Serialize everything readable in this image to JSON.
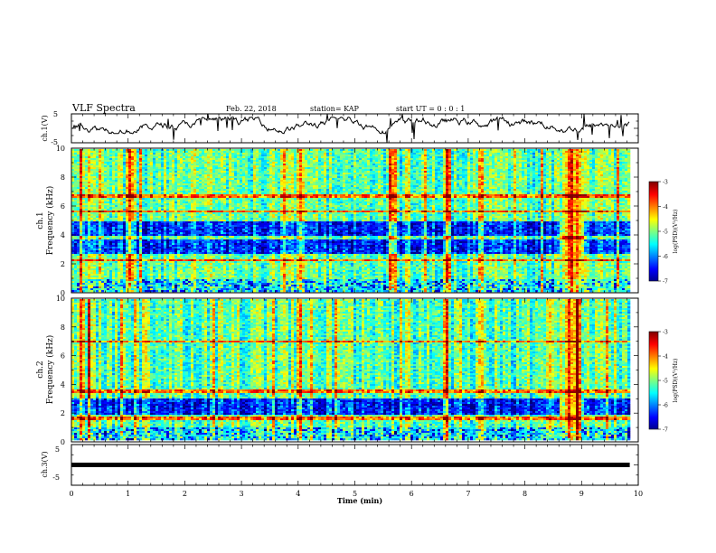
{
  "header": {
    "title": "VLF Spectra",
    "date": "Feb. 22, 2018",
    "station": "station= KAP",
    "start": "start  UT =   0 : 0  : 1"
  },
  "chart_data": [
    {
      "type": "line",
      "panel": "ch1-waveform",
      "ylabel": "ch.1(V)",
      "ylim": [
        -5,
        5
      ],
      "yticks": [
        "5",
        "-5"
      ],
      "xlim": [
        0,
        10
      ],
      "note_trace": "noisy signal between about -2 V and +4 V"
    },
    {
      "type": "heatmap",
      "panel": "ch1-spectrogram",
      "ylabel": "ch.1\nFrequency (kHz)",
      "ylim": [
        0,
        10
      ],
      "yticks": [
        "10",
        "8",
        "6",
        "4",
        "2",
        "0"
      ],
      "xlim": [
        0,
        10
      ],
      "colorbar": {
        "label": "log(PSD)(V²/Hz)",
        "range": [
          -7,
          -3
        ],
        "ticks": [
          "-3",
          "-4",
          "-5",
          "-6",
          "-7"
        ]
      },
      "strong_lines_khz": [
        2.2,
        3.8,
        5.6,
        6.7
      ],
      "low_power_band_khz": [
        2.7,
        4.9
      ],
      "bursts_min": [
        0.15,
        0.3,
        1.0,
        4.0,
        5.6,
        6.6,
        7.2,
        8.75,
        8.9
      ]
    },
    {
      "type": "heatmap",
      "panel": "ch2-spectrogram",
      "ylabel": "ch.2\nFrequency (kHz)",
      "ylim": [
        0,
        10
      ],
      "yticks": [
        "10",
        "8",
        "6",
        "4",
        "2",
        "0"
      ],
      "xlim": [
        0,
        10
      ],
      "colorbar": {
        "label": "log(PSD)(V²/Hz)",
        "range": [
          -7,
          -3
        ],
        "ticks": [
          "-3",
          "-4",
          "-5",
          "-6",
          "-7"
        ]
      },
      "strong_lines_khz": [
        1.6,
        3.5,
        7.0
      ],
      "low_power_band_khz": [
        1.9,
        3.0
      ],
      "bursts_min": [
        0.15,
        0.3,
        4.0,
        6.6,
        7.2,
        8.75,
        8.9
      ]
    },
    {
      "type": "line",
      "panel": "ch3-waveform",
      "ylabel": "ch.3(V)",
      "ylim": [
        -5,
        5
      ],
      "yticks": [
        "5",
        "-5"
      ],
      "xlim": [
        0,
        10
      ],
      "constant_value_v": 0,
      "xlabel": "Time (min)",
      "xticks": [
        "0",
        "1",
        "2",
        "3",
        "4",
        "5",
        "6",
        "7",
        "8",
        "9",
        "10"
      ]
    }
  ]
}
